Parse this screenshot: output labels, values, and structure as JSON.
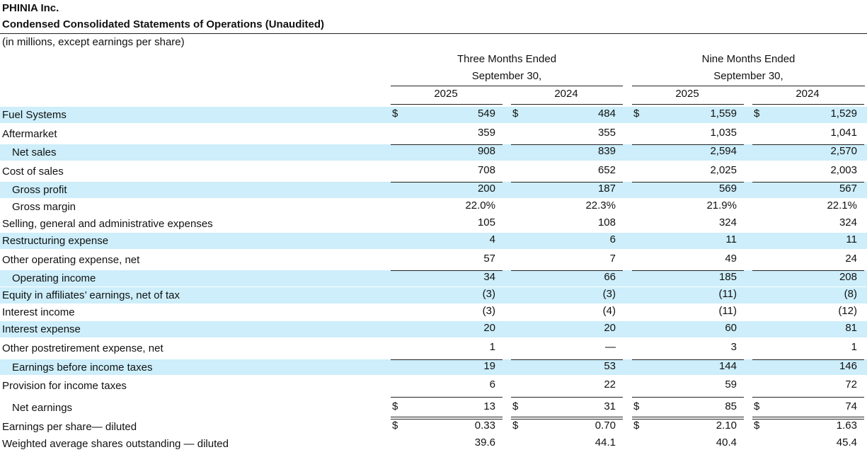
{
  "header": {
    "company": "PHINIA Inc.",
    "title": "Condensed Consolidated Statements of Operations (Unaudited)",
    "units": "(in millions, except earnings per share)"
  },
  "table": {
    "currency_symbol": "$",
    "groups": [
      {
        "line1": "Three Months Ended",
        "line2": "September 30,"
      },
      {
        "line1": "Nine Months Ended",
        "line2": "September 30,"
      }
    ],
    "columns": [
      "2025",
      "2024",
      "2025",
      "2024"
    ],
    "rows": [
      {
        "label": "Fuel Systems",
        "values": [
          "549",
          "484",
          "1,559",
          "1,529"
        ]
      },
      {
        "label": "Aftermarket",
        "values": [
          "359",
          "355",
          "1,035",
          "1,041"
        ]
      },
      {
        "label": "Net sales",
        "values": [
          "908",
          "839",
          "2,594",
          "2,570"
        ]
      },
      {
        "label": "Cost of sales",
        "values": [
          "708",
          "652",
          "2,025",
          "2,003"
        ]
      },
      {
        "label": "Gross profit",
        "values": [
          "200",
          "187",
          "569",
          "567"
        ]
      },
      {
        "label": "Gross margin",
        "values": [
          "22.0%",
          "22.3%",
          "21.9%",
          "22.1%"
        ]
      },
      {
        "label": "Selling, general and administrative expenses",
        "values": [
          "105",
          "108",
          "324",
          "324"
        ]
      },
      {
        "label": "Restructuring expense",
        "values": [
          "4",
          "6",
          "11",
          "11"
        ]
      },
      {
        "label": "Other operating expense, net",
        "values": [
          "57",
          "7",
          "49",
          "24"
        ]
      },
      {
        "label": "Operating income",
        "values": [
          "34",
          "66",
          "185",
          "208"
        ]
      },
      {
        "label": "Equity in affiliates’ earnings, net of tax",
        "values": [
          "(3)",
          "(3)",
          "(11)",
          "(8)"
        ]
      },
      {
        "label": "Interest income",
        "values": [
          "(3)",
          "(4)",
          "(11)",
          "(12)"
        ]
      },
      {
        "label": "Interest expense",
        "values": [
          "20",
          "20",
          "60",
          "81"
        ]
      },
      {
        "label": "Other postretirement expense, net",
        "values": [
          "1",
          "—",
          "3",
          "1"
        ]
      },
      {
        "label": "Earnings before income taxes",
        "values": [
          "19",
          "53",
          "144",
          "146"
        ]
      },
      {
        "label": "Provision for income taxes",
        "values": [
          "6",
          "22",
          "59",
          "72"
        ]
      },
      {
        "label": "Net earnings",
        "values": [
          "13",
          "31",
          "85",
          "74"
        ]
      },
      {
        "label": "Earnings per share— diluted",
        "values": [
          "0.33",
          "0.70",
          "2.10",
          "1.63"
        ]
      },
      {
        "label": "Weighted average shares outstanding — diluted",
        "values": [
          "39.6",
          "44.1",
          "40.4",
          "45.4"
        ]
      }
    ]
  }
}
